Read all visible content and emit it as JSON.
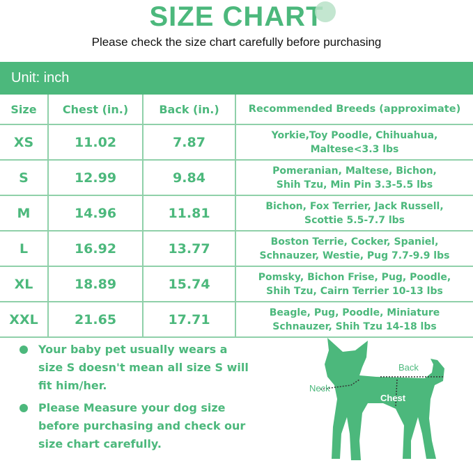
{
  "title": "SIZE CHART",
  "subtitle": "Please check the size chart carefully before purchasing",
  "unit": "Unit: inch",
  "brand_color": "#4cb87c",
  "table": {
    "headers": [
      "Size",
      "Chest (in.)",
      "Back (in.)",
      "Recommended Breeds (approximate)"
    ],
    "rows": [
      {
        "size": "XS",
        "chest": "11.02",
        "back": "7.87",
        "breeds": [
          "Yorkie,Toy Poodle, Chihuahua,",
          "Maltese<3.3 lbs"
        ]
      },
      {
        "size": "S",
        "chest": "12.99",
        "back": "9.84",
        "breeds": [
          "Pomeranian, Maltese, Bichon,",
          "Shih Tzu, Min Pin 3.3-5.5 lbs"
        ]
      },
      {
        "size": "M",
        "chest": "14.96",
        "back": "11.81",
        "breeds": [
          "Bichon, Fox Terrier, Jack Russell,",
          "Scottie 5.5-7.7 lbs"
        ]
      },
      {
        "size": "L",
        "chest": "16.92",
        "back": "13.77",
        "breeds": [
          "Boston Terrie, Cocker, Spaniel,",
          "Schnauzer, Westie, Pug 7.7-9.9 lbs"
        ]
      },
      {
        "size": "XL",
        "chest": "18.89",
        "back": "15.74",
        "breeds": [
          "Pomsky, Bichon Frise, Pug, Poodle,",
          "Shih Tzu, Cairn Terrier 10-13 lbs"
        ]
      },
      {
        "size": "XXL",
        "chest": "21.65",
        "back": "17.71",
        "breeds": [
          "Beagle, Pug, Poodle, Miniature",
          "Schnauzer, Shih Tzu 14-18 lbs"
        ]
      }
    ]
  },
  "notes": [
    "Your baby pet usually wears a size S doesn't mean all size S will fit him/her.",
    "Please Measure your dog size before purchasing and check our size chart carefully."
  ],
  "diagram": {
    "back": "Back",
    "neck": "Neck",
    "chest": "Chest"
  }
}
